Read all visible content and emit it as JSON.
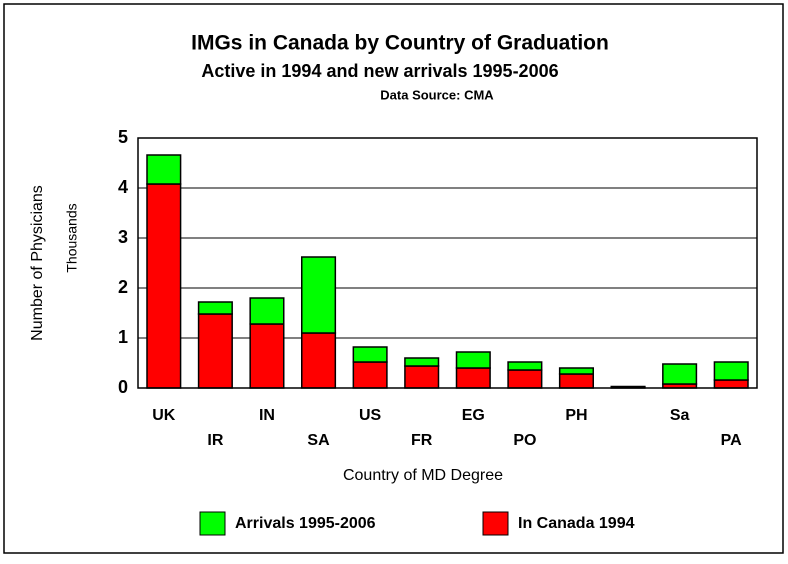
{
  "chart_data": {
    "type": "stacked_bar",
    "title": "IMGs in Canada by Country of Graduation",
    "subtitle": "Active in 1994 and new arrivals 1995-2006",
    "source": "Data Source: CMA",
    "y_label": "Number of Physicians",
    "y_unit_label": "Thousands",
    "x_label": "Country of MD Degree",
    "categories": [
      "UK",
      "IR",
      "IN",
      "SA",
      "US",
      "FR",
      "EG",
      "PO",
      "PH",
      null,
      "Sa",
      "PA"
    ],
    "series": [
      {
        "name": "In Canada 1994",
        "color": "#ff0000",
        "values": [
          4.08,
          1.48,
          1.28,
          1.1,
          0.52,
          0.44,
          0.4,
          0.36,
          0.28,
          0.02,
          0.08,
          0.16
        ]
      },
      {
        "name": "Arrivals 1995-2006",
        "color": "#00ff00",
        "values": [
          0.58,
          0.24,
          0.52,
          1.52,
          0.3,
          0.16,
          0.32,
          0.16,
          0.12,
          0.01,
          0.4,
          0.36
        ]
      }
    ],
    "ylim": [
      0,
      5
    ],
    "yticks": [
      0,
      1,
      2,
      3,
      4,
      5
    ],
    "grid": true,
    "legend": "bottom"
  }
}
